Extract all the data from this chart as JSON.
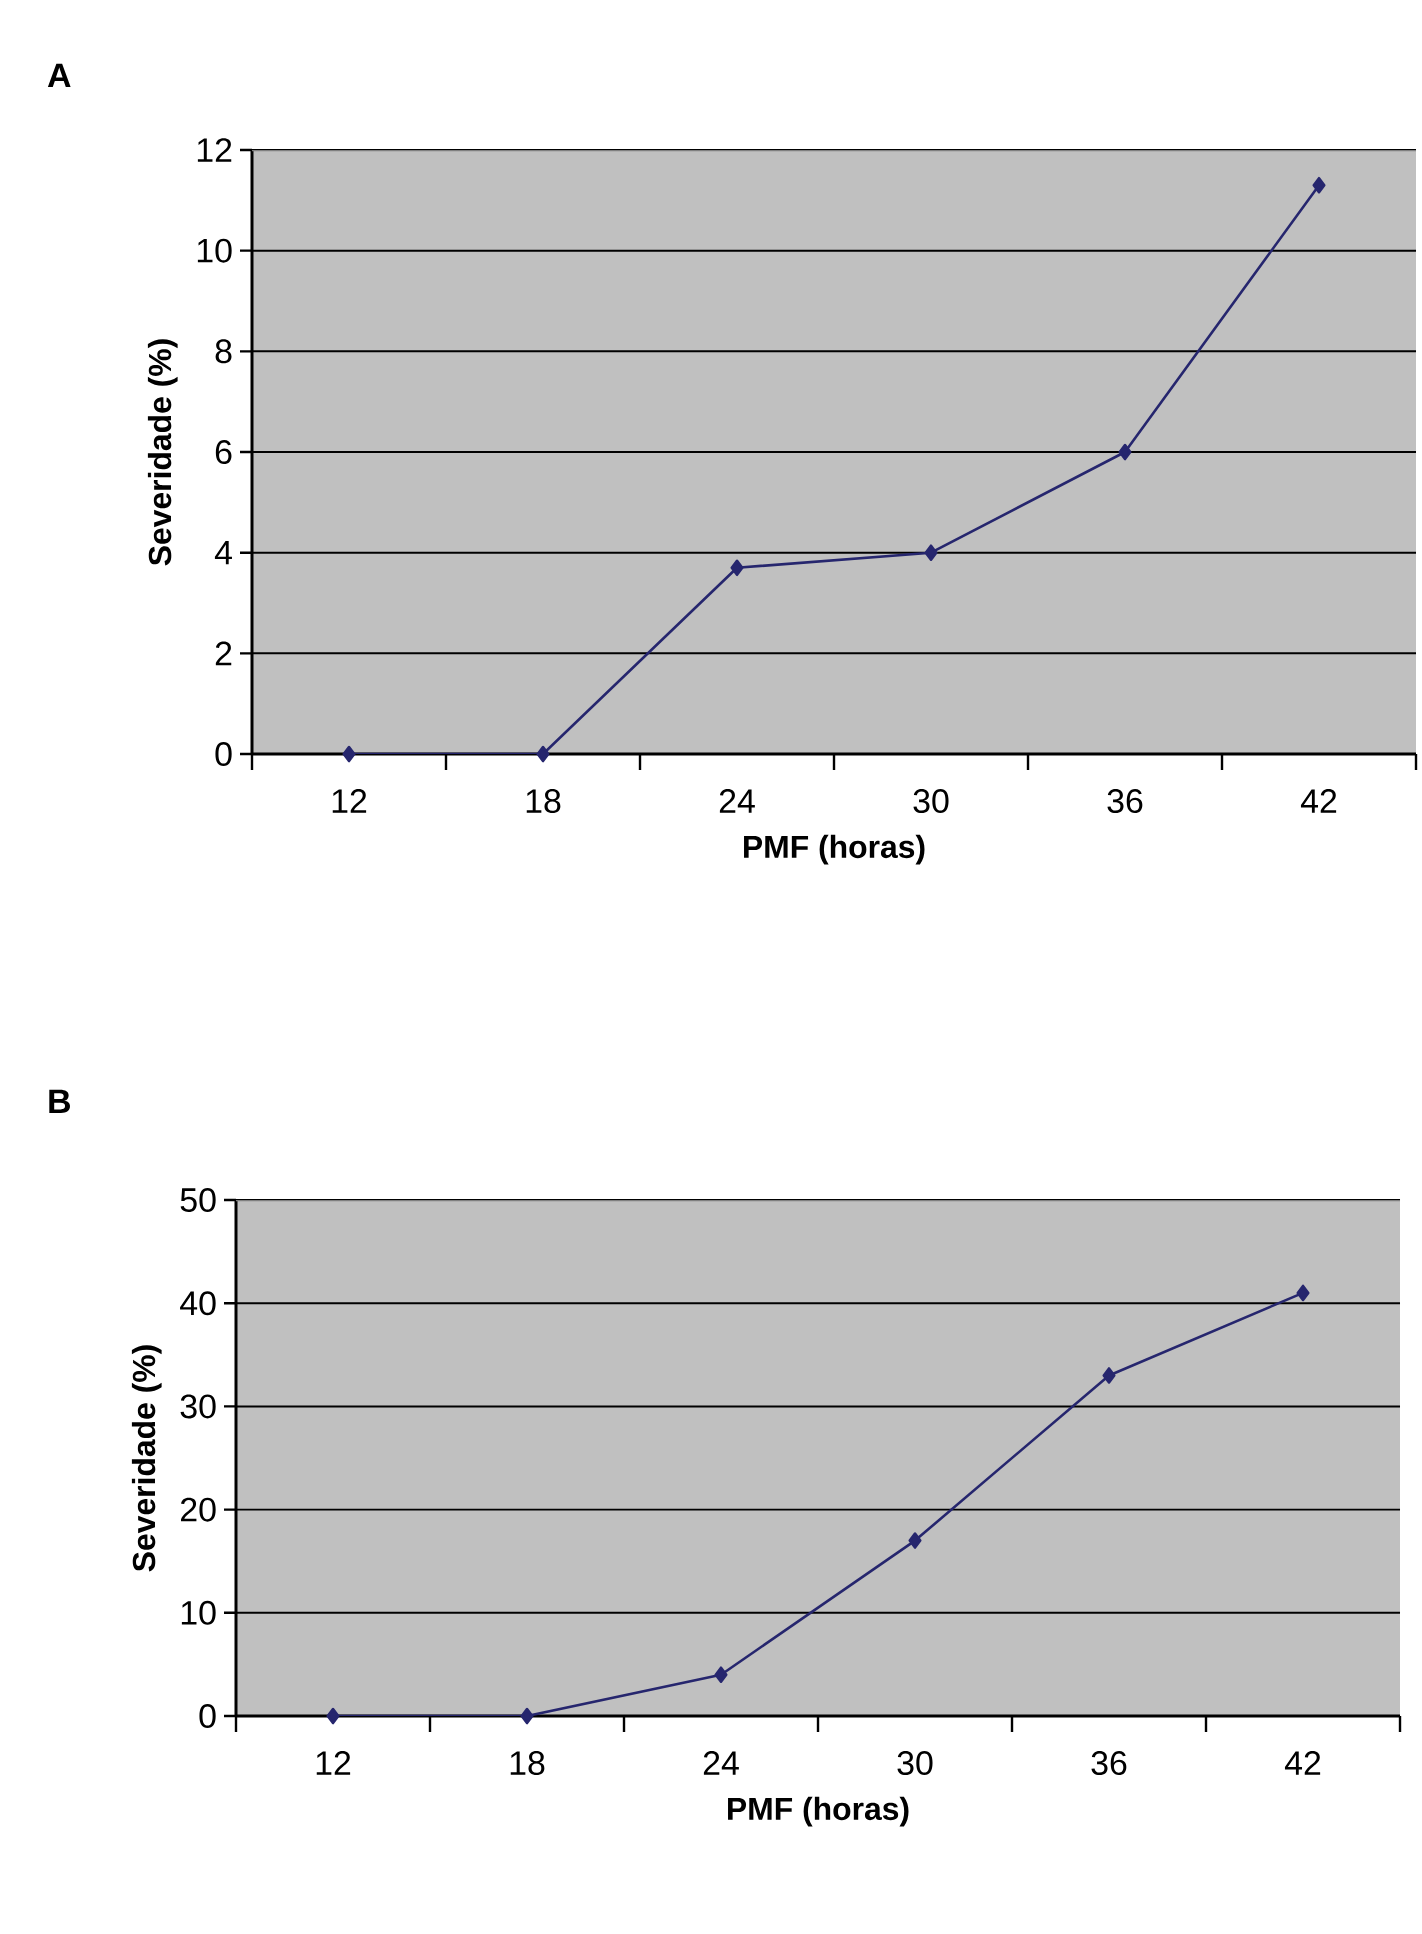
{
  "chart_data": [
    {
      "type": "line",
      "title": "A",
      "categories": [
        "12",
        "18",
        "24",
        "30",
        "36",
        "42"
      ],
      "xlabel": "PMF (horas)",
      "ylabel": "Severidade (%)",
      "ylim": [
        0,
        12
      ],
      "yticks": [
        0,
        2,
        4,
        6,
        8,
        10,
        12
      ],
      "grid": "y",
      "marker": "diamond",
      "series": [
        {
          "color": "#26266e",
          "values": [
            0,
            0,
            3.7,
            4.0,
            6.0,
            11.3
          ]
        }
      ]
    },
    {
      "type": "line",
      "title": "B",
      "categories": [
        "12",
        "18",
        "24",
        "30",
        "36",
        "42"
      ],
      "xlabel": "PMF (horas)",
      "ylabel": "Severidade (%)",
      "ylim": [
        0,
        50
      ],
      "yticks": [
        0,
        10,
        20,
        30,
        40,
        50
      ],
      "grid": "y",
      "marker": "diamond",
      "series": [
        {
          "color": "#26266e",
          "values": [
            0,
            0,
            4,
            17,
            33,
            41
          ]
        }
      ]
    }
  ]
}
